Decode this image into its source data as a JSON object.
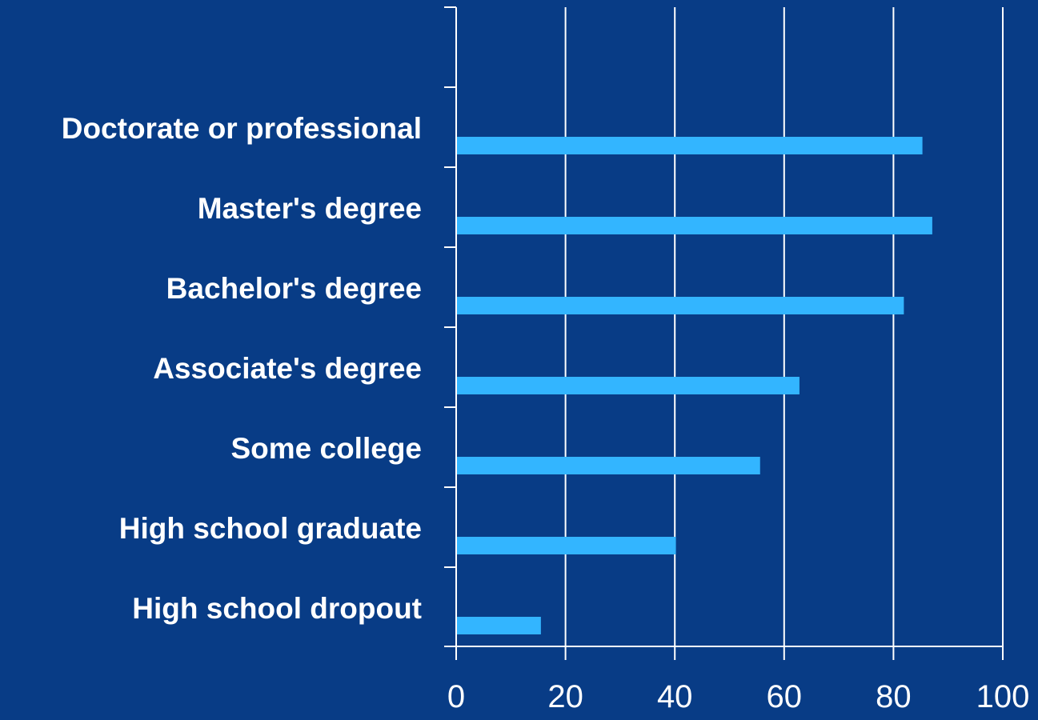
{
  "chart_data": {
    "type": "bar",
    "orientation": "horizontal",
    "categories": [
      "Doctorate or professional",
      "Master's degree",
      "Bachelor's degree",
      "Associate's degree",
      "Some college",
      "High school graduate",
      "High school dropout"
    ],
    "values": [
      85.3,
      87.1,
      81.9,
      62.8,
      55.6,
      40.2,
      15.5
    ],
    "xlim": [
      0,
      100
    ],
    "x_ticks": [
      "0",
      "20",
      "40",
      "60",
      "80",
      "100"
    ],
    "grid": true,
    "legend": "none",
    "title": "",
    "xlabel": "",
    "ylabel": "",
    "colors": {
      "background": "#083c86",
      "bar": "#33b5ff",
      "text": "#ffffff",
      "grid": "#ffffff"
    }
  }
}
